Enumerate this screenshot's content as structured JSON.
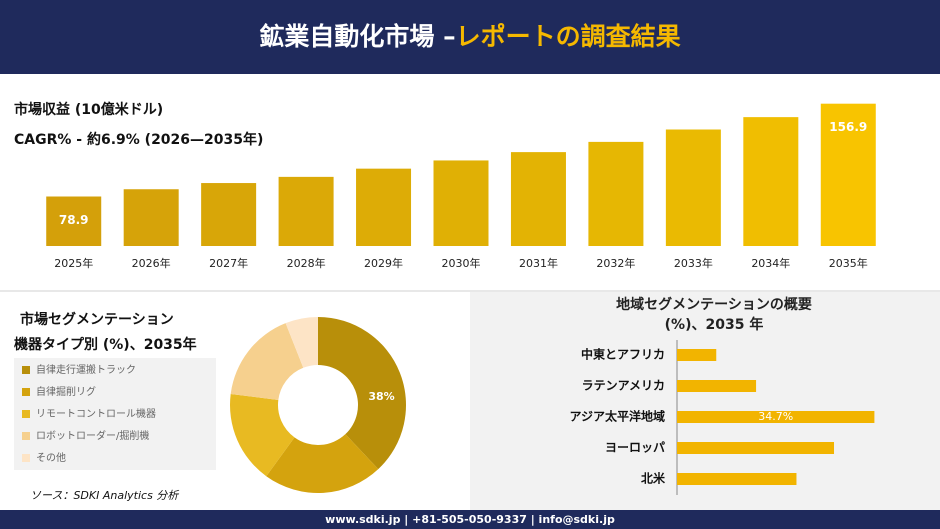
{
  "header": {
    "title_main": "鉱業自動化市場 –",
    "title_highlight": "レポートの調査結果"
  },
  "chart_data": [
    {
      "type": "bar",
      "title": "市場収益 (10億米ドル)",
      "subtitle": "CAGR% - 約6.9% (2026—2035年)",
      "categories": [
        "2025年",
        "2026年",
        "2027年",
        "2028年",
        "2029年",
        "2030年",
        "2031年",
        "2032年",
        "2033年",
        "2034年",
        "2035年"
      ],
      "values": [
        78.9,
        85,
        90.2,
        95.4,
        102.3,
        109.2,
        116.2,
        124.8,
        135.2,
        145.6,
        156.9
      ],
      "value_labels": [
        "78.9",
        null,
        null,
        null,
        null,
        null,
        null,
        null,
        null,
        null,
        "156.9"
      ],
      "colors": [
        "#d4a00a",
        "#d6a309",
        "#d8a608",
        "#dba907",
        "#ddac06",
        "#e0b005",
        "#e3b304",
        "#e6b703",
        "#eaba02",
        "#f0be01",
        "#f8c400"
      ],
      "ylim": [
        37.3,
        160
      ]
    },
    {
      "type": "donut",
      "title": "市場セグメンテーション",
      "subtitle": "機器タイプ別 (%)、2035年",
      "categories": [
        "自律走行運搬トラック",
        "自律掘削リグ",
        "リモートコントロール機器",
        "ロボットローダー/掘削機",
        "その他"
      ],
      "values": [
        38,
        22,
        17,
        17,
        6
      ],
      "value_labels": [
        "38%",
        null,
        null,
        null,
        null
      ],
      "colors": [
        "#b88f0a",
        "#d4a30e",
        "#e8ba22",
        "#f6d08e",
        "#fde4c6"
      ]
    },
    {
      "type": "hbar",
      "title": "地域セグメンテーションの概要 (%)、2035 年",
      "categories": [
        "中東とアフリカ",
        "ラテンアメリカ",
        "アジア太平洋地域",
        "ヨーロッパ",
        "北米"
      ],
      "values": [
        6.9,
        13.9,
        34.7,
        27.6,
        21.0
      ],
      "value_labels": [
        null,
        null,
        "34.7%",
        null,
        null
      ],
      "color": "#f2b400",
      "xlim": [
        0,
        45
      ]
    }
  ],
  "source": "ソース：SDKI Analytics 分析",
  "footer": "www.sdki.jp | +81-505-050-9337 | info@sdki.jp"
}
